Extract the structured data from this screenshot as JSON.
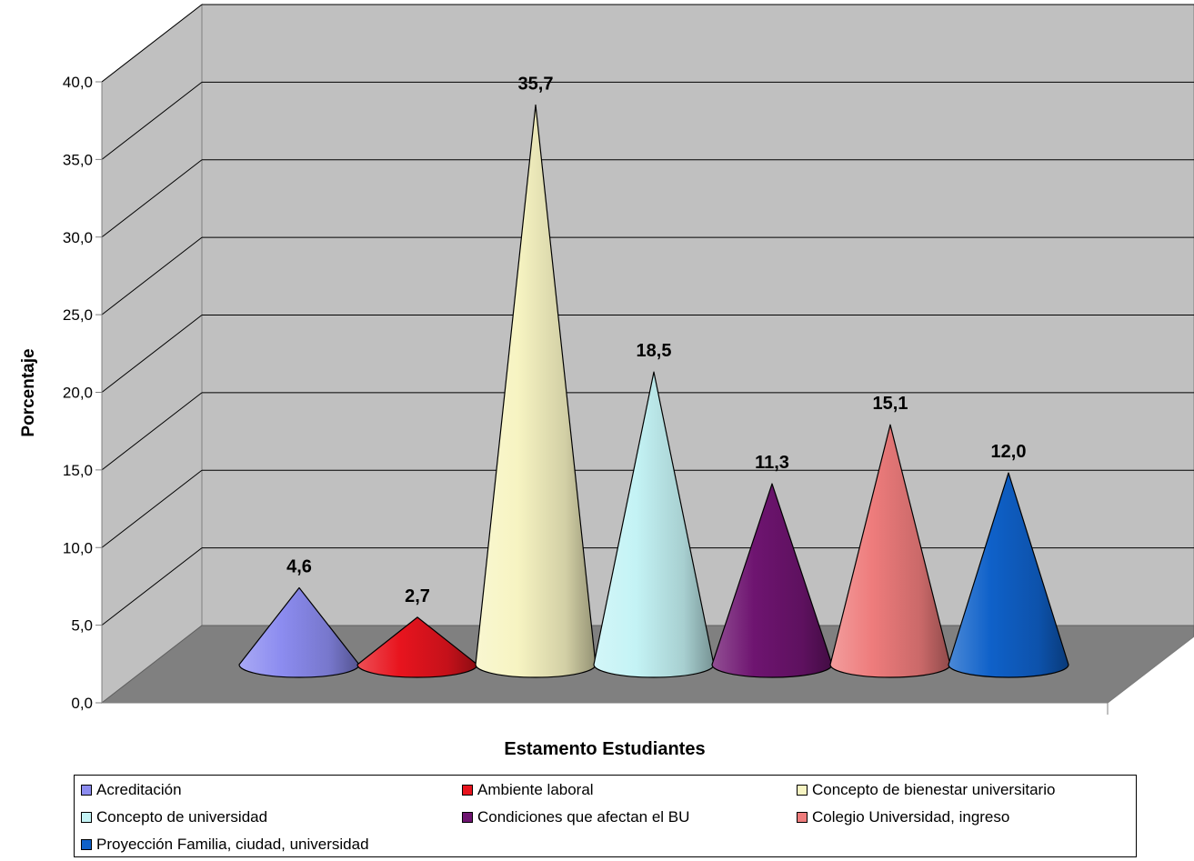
{
  "chart_data": {
    "type": "bar",
    "style": "3d-cone",
    "xlabel": "Estamento Estudiantes",
    "ylabel": "Porcentaje",
    "ylim": [
      0,
      40
    ],
    "yticks": [
      "0,0",
      "5,0",
      "10,0",
      "15,0",
      "20,0",
      "25,0",
      "30,0",
      "35,0",
      "40,0"
    ],
    "grid": true,
    "legend_position": "bottom",
    "series": [
      {
        "name": "Acreditación",
        "value": 4.6,
        "label": "4,6",
        "color": "#8c8cf0"
      },
      {
        "name": "Ambiente laboral",
        "value": 2.7,
        "label": "2,7",
        "color": "#e8141e"
      },
      {
        "name": "Concepto de bienestar universitario",
        "value": 35.7,
        "label": "35,7",
        "color": "#f7f4c2"
      },
      {
        "name": "Concepto de universidad",
        "value": 18.5,
        "label": "18,5",
        "color": "#c4f3f5"
      },
      {
        "name": "Condiciones que afectan el BU",
        "value": 11.3,
        "label": "11,3",
        "color": "#6e1470"
      },
      {
        "name": "Colegio Universidad, ingreso",
        "value": 15.1,
        "label": "15,1",
        "color": "#ee7c7c"
      },
      {
        "name": "Proyección Familia, ciudad, universidad",
        "value": 12.0,
        "label": "12,0",
        "color": "#0f61c9"
      }
    ]
  }
}
